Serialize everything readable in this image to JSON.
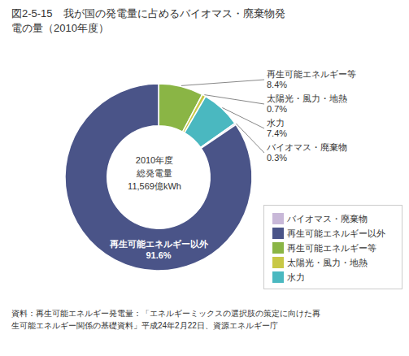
{
  "chart_data": {
    "type": "pie",
    "title": "図2-5-15　我が国の発電量に占めるバイオマス・廃棄物発\n電の量（2010年度）",
    "categories": [
      "再生可能エネルギー等",
      "太陽光・風力・地熱",
      "水力",
      "バイオマス・廃棄物",
      "再生可能エネルギー以外"
    ],
    "values": [
      8.4,
      0.7,
      7.4,
      0.3,
      91.6
    ],
    "value_labels": [
      "8.4%",
      "0.7%",
      "7.4%",
      "0.3%",
      "91.6%"
    ],
    "colors": [
      "#8ab545",
      "#c8c846",
      "#4ab8c0",
      "#c8b8d8",
      "#4a5488"
    ],
    "data_labels": true,
    "legend": "lower right",
    "annotations": [
      "2010年度\n総発電量\n11,569億kWh",
      "資料：再生可能エネルギー発電量：「エネルギーミックスの選択肢の策定に向けた再\n生可能エネルギー関係の基礎資料」平成24年2月22日、資源エネルギー庁"
    ]
  }
}
